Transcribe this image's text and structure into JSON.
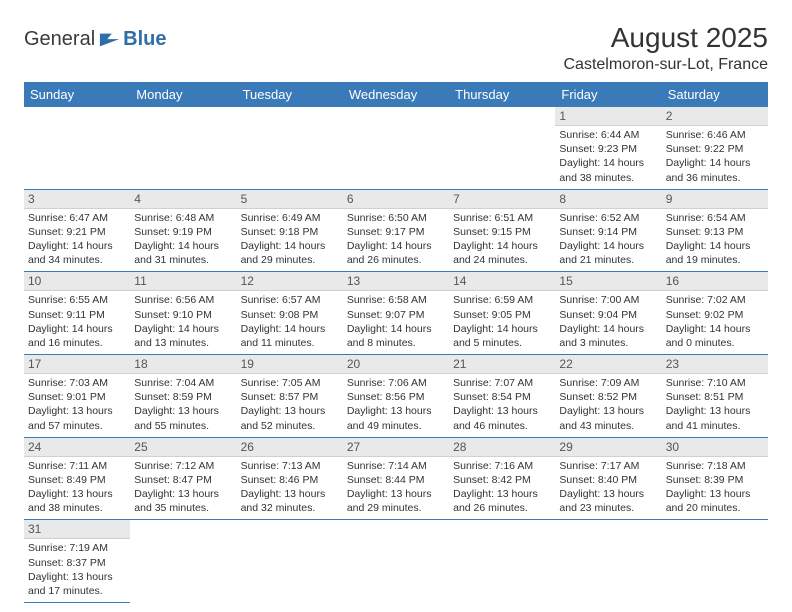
{
  "logo": {
    "text_a": "General",
    "text_b": "Blue"
  },
  "header": {
    "month_title": "August 2025",
    "location": "Castelmoron-sur-Lot, France"
  },
  "colors": {
    "header_bg": "#3a7ab8",
    "header_fg": "#ffffff",
    "daynum_bg": "#e9e9e9",
    "row_border": "#3a7ab8",
    "logo_blue": "#2f6fa8"
  },
  "weekdays": [
    "Sunday",
    "Monday",
    "Tuesday",
    "Wednesday",
    "Thursday",
    "Friday",
    "Saturday"
  ],
  "layout": {
    "first_weekday_index": 5,
    "days_in_month": 31,
    "rows": 6,
    "cols": 7
  },
  "days": {
    "1": {
      "sunrise": "6:44 AM",
      "sunset": "9:23 PM",
      "daylight": "14 hours and 38 minutes."
    },
    "2": {
      "sunrise": "6:46 AM",
      "sunset": "9:22 PM",
      "daylight": "14 hours and 36 minutes."
    },
    "3": {
      "sunrise": "6:47 AM",
      "sunset": "9:21 PM",
      "daylight": "14 hours and 34 minutes."
    },
    "4": {
      "sunrise": "6:48 AM",
      "sunset": "9:19 PM",
      "daylight": "14 hours and 31 minutes."
    },
    "5": {
      "sunrise": "6:49 AM",
      "sunset": "9:18 PM",
      "daylight": "14 hours and 29 minutes."
    },
    "6": {
      "sunrise": "6:50 AM",
      "sunset": "9:17 PM",
      "daylight": "14 hours and 26 minutes."
    },
    "7": {
      "sunrise": "6:51 AM",
      "sunset": "9:15 PM",
      "daylight": "14 hours and 24 minutes."
    },
    "8": {
      "sunrise": "6:52 AM",
      "sunset": "9:14 PM",
      "daylight": "14 hours and 21 minutes."
    },
    "9": {
      "sunrise": "6:54 AM",
      "sunset": "9:13 PM",
      "daylight": "14 hours and 19 minutes."
    },
    "10": {
      "sunrise": "6:55 AM",
      "sunset": "9:11 PM",
      "daylight": "14 hours and 16 minutes."
    },
    "11": {
      "sunrise": "6:56 AM",
      "sunset": "9:10 PM",
      "daylight": "14 hours and 13 minutes."
    },
    "12": {
      "sunrise": "6:57 AM",
      "sunset": "9:08 PM",
      "daylight": "14 hours and 11 minutes."
    },
    "13": {
      "sunrise": "6:58 AM",
      "sunset": "9:07 PM",
      "daylight": "14 hours and 8 minutes."
    },
    "14": {
      "sunrise": "6:59 AM",
      "sunset": "9:05 PM",
      "daylight": "14 hours and 5 minutes."
    },
    "15": {
      "sunrise": "7:00 AM",
      "sunset": "9:04 PM",
      "daylight": "14 hours and 3 minutes."
    },
    "16": {
      "sunrise": "7:02 AM",
      "sunset": "9:02 PM",
      "daylight": "14 hours and 0 minutes."
    },
    "17": {
      "sunrise": "7:03 AM",
      "sunset": "9:01 PM",
      "daylight": "13 hours and 57 minutes."
    },
    "18": {
      "sunrise": "7:04 AM",
      "sunset": "8:59 PM",
      "daylight": "13 hours and 55 minutes."
    },
    "19": {
      "sunrise": "7:05 AM",
      "sunset": "8:57 PM",
      "daylight": "13 hours and 52 minutes."
    },
    "20": {
      "sunrise": "7:06 AM",
      "sunset": "8:56 PM",
      "daylight": "13 hours and 49 minutes."
    },
    "21": {
      "sunrise": "7:07 AM",
      "sunset": "8:54 PM",
      "daylight": "13 hours and 46 minutes."
    },
    "22": {
      "sunrise": "7:09 AM",
      "sunset": "8:52 PM",
      "daylight": "13 hours and 43 minutes."
    },
    "23": {
      "sunrise": "7:10 AM",
      "sunset": "8:51 PM",
      "daylight": "13 hours and 41 minutes."
    },
    "24": {
      "sunrise": "7:11 AM",
      "sunset": "8:49 PM",
      "daylight": "13 hours and 38 minutes."
    },
    "25": {
      "sunrise": "7:12 AM",
      "sunset": "8:47 PM",
      "daylight": "13 hours and 35 minutes."
    },
    "26": {
      "sunrise": "7:13 AM",
      "sunset": "8:46 PM",
      "daylight": "13 hours and 32 minutes."
    },
    "27": {
      "sunrise": "7:14 AM",
      "sunset": "8:44 PM",
      "daylight": "13 hours and 29 minutes."
    },
    "28": {
      "sunrise": "7:16 AM",
      "sunset": "8:42 PM",
      "daylight": "13 hours and 26 minutes."
    },
    "29": {
      "sunrise": "7:17 AM",
      "sunset": "8:40 PM",
      "daylight": "13 hours and 23 minutes."
    },
    "30": {
      "sunrise": "7:18 AM",
      "sunset": "8:39 PM",
      "daylight": "13 hours and 20 minutes."
    },
    "31": {
      "sunrise": "7:19 AM",
      "sunset": "8:37 PM",
      "daylight": "13 hours and 17 minutes."
    }
  },
  "labels": {
    "sunrise": "Sunrise:",
    "sunset": "Sunset:",
    "daylight": "Daylight:"
  }
}
